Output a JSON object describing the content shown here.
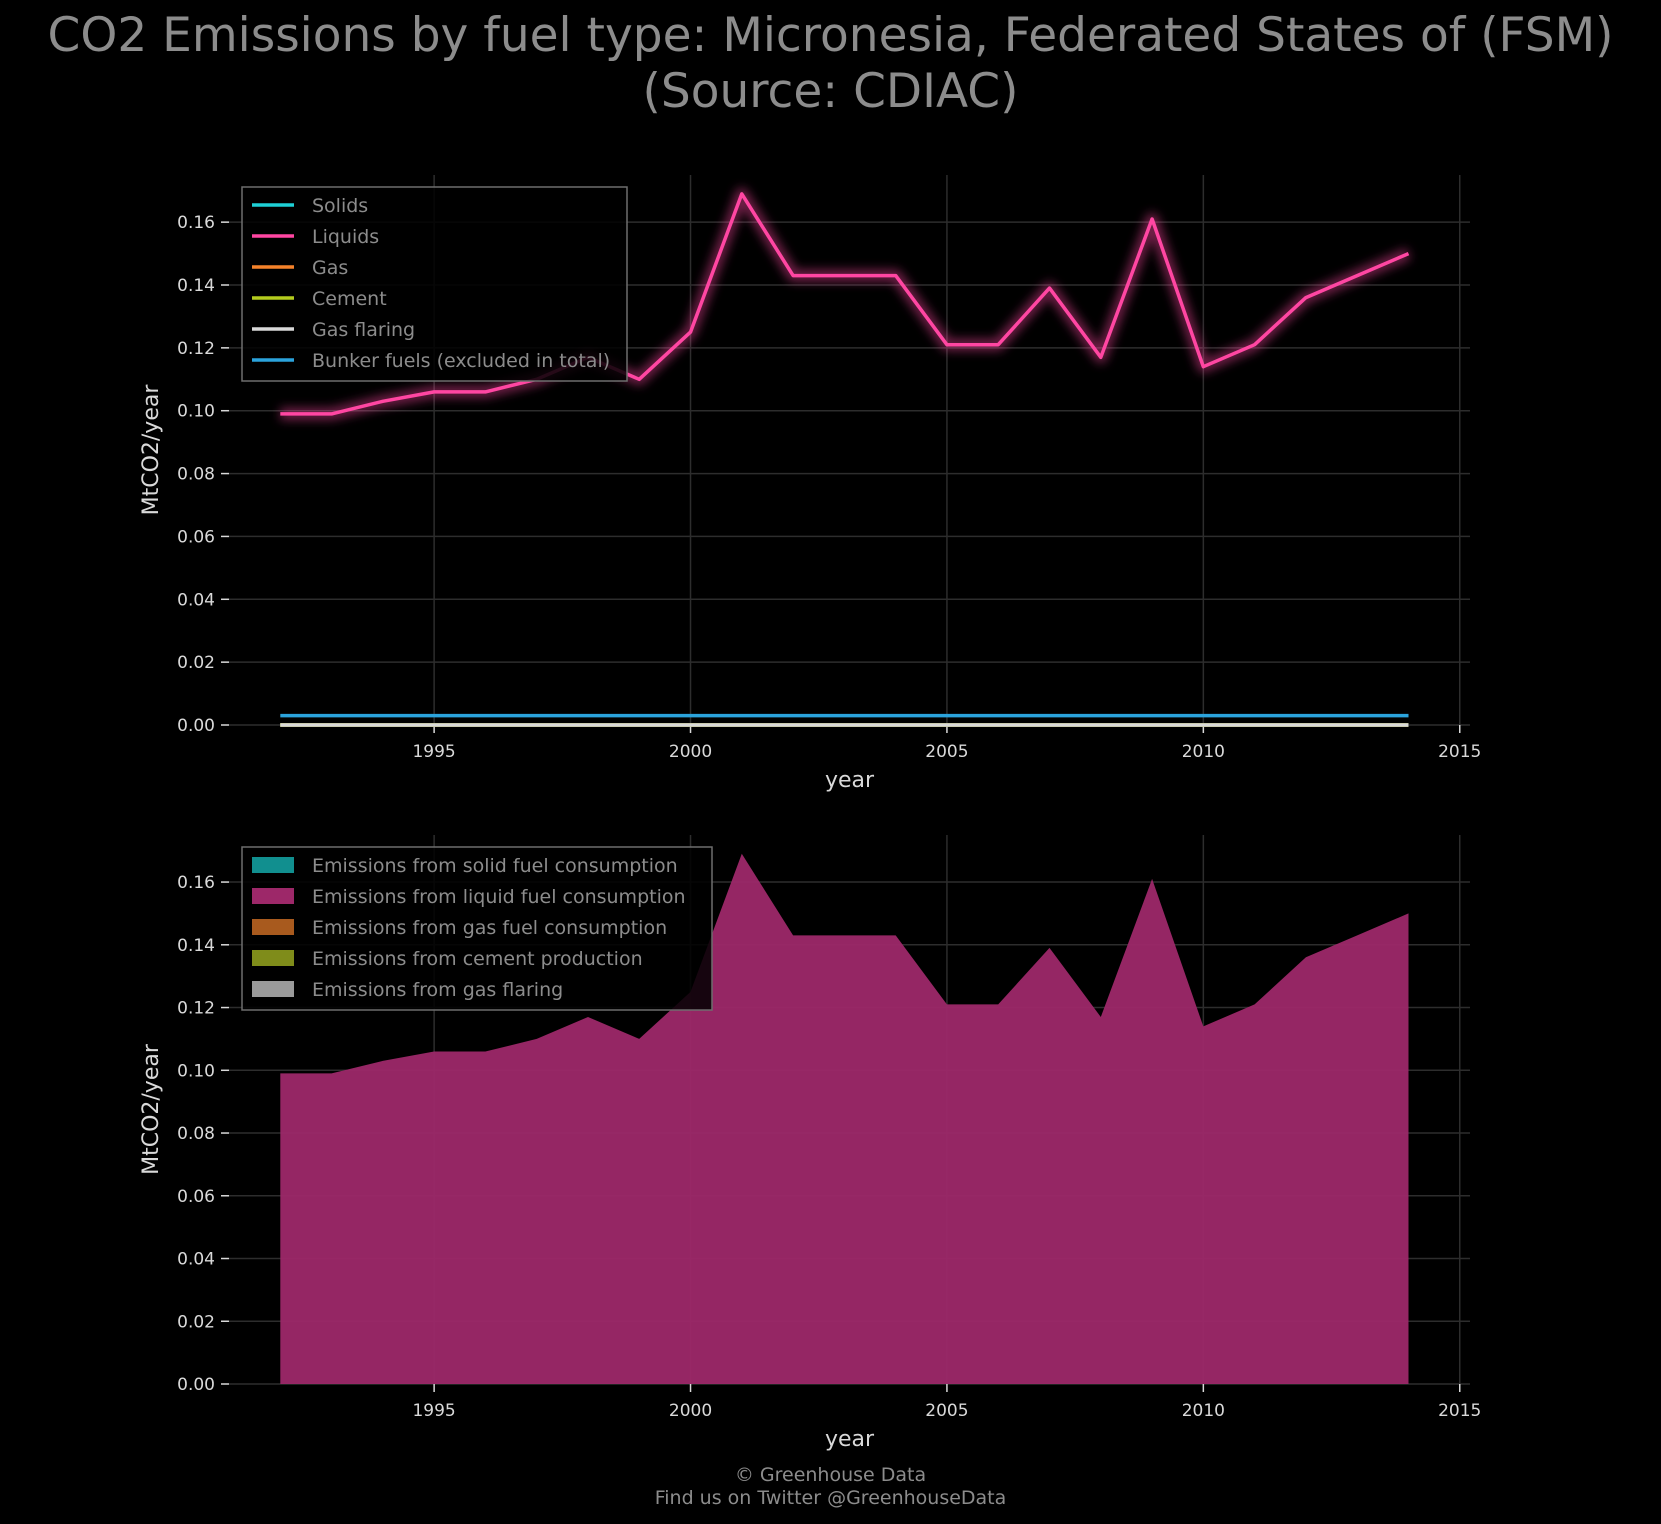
{
  "title": "CO2 Emissions by fuel type: Micronesia, Federated States of (FSM)\n(Source: CDIAC)",
  "footer": {
    "line1": "© Greenhouse Data",
    "line2": "Find us on Twitter @GreenhouseData"
  },
  "chart_data": [
    {
      "type": "line",
      "xlabel": "year",
      "ylabel": "MtCO2/year",
      "xlim": [
        1991,
        2015.2
      ],
      "ylim": [
        0,
        0.175
      ],
      "xticks": [
        1995,
        2000,
        2005,
        2010,
        2015
      ],
      "yticks": [
        "0.00",
        "0.02",
        "0.04",
        "0.06",
        "0.08",
        "0.10",
        "0.12",
        "0.14",
        "0.16"
      ],
      "grid": true,
      "legend_position": "top-left",
      "x": [
        1992,
        1993,
        1994,
        1995,
        1996,
        1997,
        1998,
        1999,
        2000,
        2001,
        2002,
        2003,
        2004,
        2005,
        2006,
        2007,
        2008,
        2009,
        2010,
        2011,
        2012,
        2013,
        2014
      ],
      "series": [
        {
          "name": "Solids",
          "color": "#1ed0d6",
          "values": [
            0,
            0,
            0,
            0,
            0,
            0,
            0,
            0,
            0,
            0,
            0,
            0,
            0,
            0,
            0,
            0,
            0,
            0,
            0,
            0,
            0,
            0,
            0
          ]
        },
        {
          "name": "Liquids",
          "color": "#ff46a2",
          "values": [
            0.099,
            0.099,
            0.103,
            0.106,
            0.106,
            0.11,
            0.117,
            0.11,
            0.125,
            0.169,
            0.143,
            0.143,
            0.143,
            0.121,
            0.121,
            0.139,
            0.117,
            0.161,
            0.114,
            0.121,
            0.136,
            0.143,
            0.15
          ]
        },
        {
          "name": "Gas",
          "color": "#f5822a",
          "values": [
            0,
            0,
            0,
            0,
            0,
            0,
            0,
            0,
            0,
            0,
            0,
            0,
            0,
            0,
            0,
            0,
            0,
            0,
            0,
            0,
            0,
            0,
            0
          ]
        },
        {
          "name": "Cement",
          "color": "#b4cc1e",
          "values": [
            0,
            0,
            0,
            0,
            0,
            0,
            0,
            0,
            0,
            0,
            0,
            0,
            0,
            0,
            0,
            0,
            0,
            0,
            0,
            0,
            0,
            0,
            0
          ]
        },
        {
          "name": "Gas flaring",
          "color": "#d9d9d9",
          "values": [
            0,
            0,
            0,
            0,
            0,
            0,
            0,
            0,
            0,
            0,
            0,
            0,
            0,
            0,
            0,
            0,
            0,
            0,
            0,
            0,
            0,
            0,
            0
          ]
        },
        {
          "name": "Bunker fuels (excluded in total)",
          "color": "#2ba3dc",
          "values": [
            0.003,
            0.003,
            0.003,
            0.003,
            0.003,
            0.003,
            0.003,
            0.003,
            0.003,
            0.003,
            0.003,
            0.003,
            0.003,
            0.003,
            0.003,
            0.003,
            0.003,
            0.003,
            0.003,
            0.003,
            0.003,
            0.003,
            0.003
          ]
        }
      ]
    },
    {
      "type": "area",
      "stacked": true,
      "xlabel": "year",
      "ylabel": "MtCO2/year",
      "xlim": [
        1991,
        2015.2
      ],
      "ylim": [
        0,
        0.175
      ],
      "xticks": [
        1995,
        2000,
        2005,
        2010,
        2015
      ],
      "yticks": [
        "0.00",
        "0.02",
        "0.04",
        "0.06",
        "0.08",
        "0.10",
        "0.12",
        "0.14",
        "0.16"
      ],
      "grid": true,
      "legend_position": "top-left",
      "x": [
        1992,
        1993,
        1994,
        1995,
        1996,
        1997,
        1998,
        1999,
        2000,
        2001,
        2002,
        2003,
        2004,
        2005,
        2006,
        2007,
        2008,
        2009,
        2010,
        2011,
        2012,
        2013,
        2014
      ],
      "series": [
        {
          "name": "Emissions from solid fuel consumption",
          "color": "#118f8f",
          "values": [
            0,
            0,
            0,
            0,
            0,
            0,
            0,
            0,
            0,
            0,
            0,
            0,
            0,
            0,
            0,
            0,
            0,
            0,
            0,
            0,
            0,
            0,
            0
          ]
        },
        {
          "name": "Emissions from liquid fuel consumption",
          "color": "#9d2869",
          "values": [
            0.099,
            0.099,
            0.103,
            0.106,
            0.106,
            0.11,
            0.117,
            0.11,
            0.125,
            0.169,
            0.143,
            0.143,
            0.143,
            0.121,
            0.121,
            0.139,
            0.117,
            0.161,
            0.114,
            0.121,
            0.136,
            0.143,
            0.15
          ]
        },
        {
          "name": "Emissions from gas fuel consumption",
          "color": "#a85a1e",
          "values": [
            0,
            0,
            0,
            0,
            0,
            0,
            0,
            0,
            0,
            0,
            0,
            0,
            0,
            0,
            0,
            0,
            0,
            0,
            0,
            0,
            0,
            0,
            0
          ]
        },
        {
          "name": "Emissions from cement production",
          "color": "#7f8c1a",
          "values": [
            0,
            0,
            0,
            0,
            0,
            0,
            0,
            0,
            0,
            0,
            0,
            0,
            0,
            0,
            0,
            0,
            0,
            0,
            0,
            0,
            0,
            0,
            0
          ]
        },
        {
          "name": "Emissions from gas flaring",
          "color": "#9a9a9a",
          "values": [
            0,
            0,
            0,
            0,
            0,
            0,
            0,
            0,
            0,
            0,
            0,
            0,
            0,
            0,
            0,
            0,
            0,
            0,
            0,
            0,
            0,
            0,
            0
          ]
        }
      ]
    }
  ]
}
